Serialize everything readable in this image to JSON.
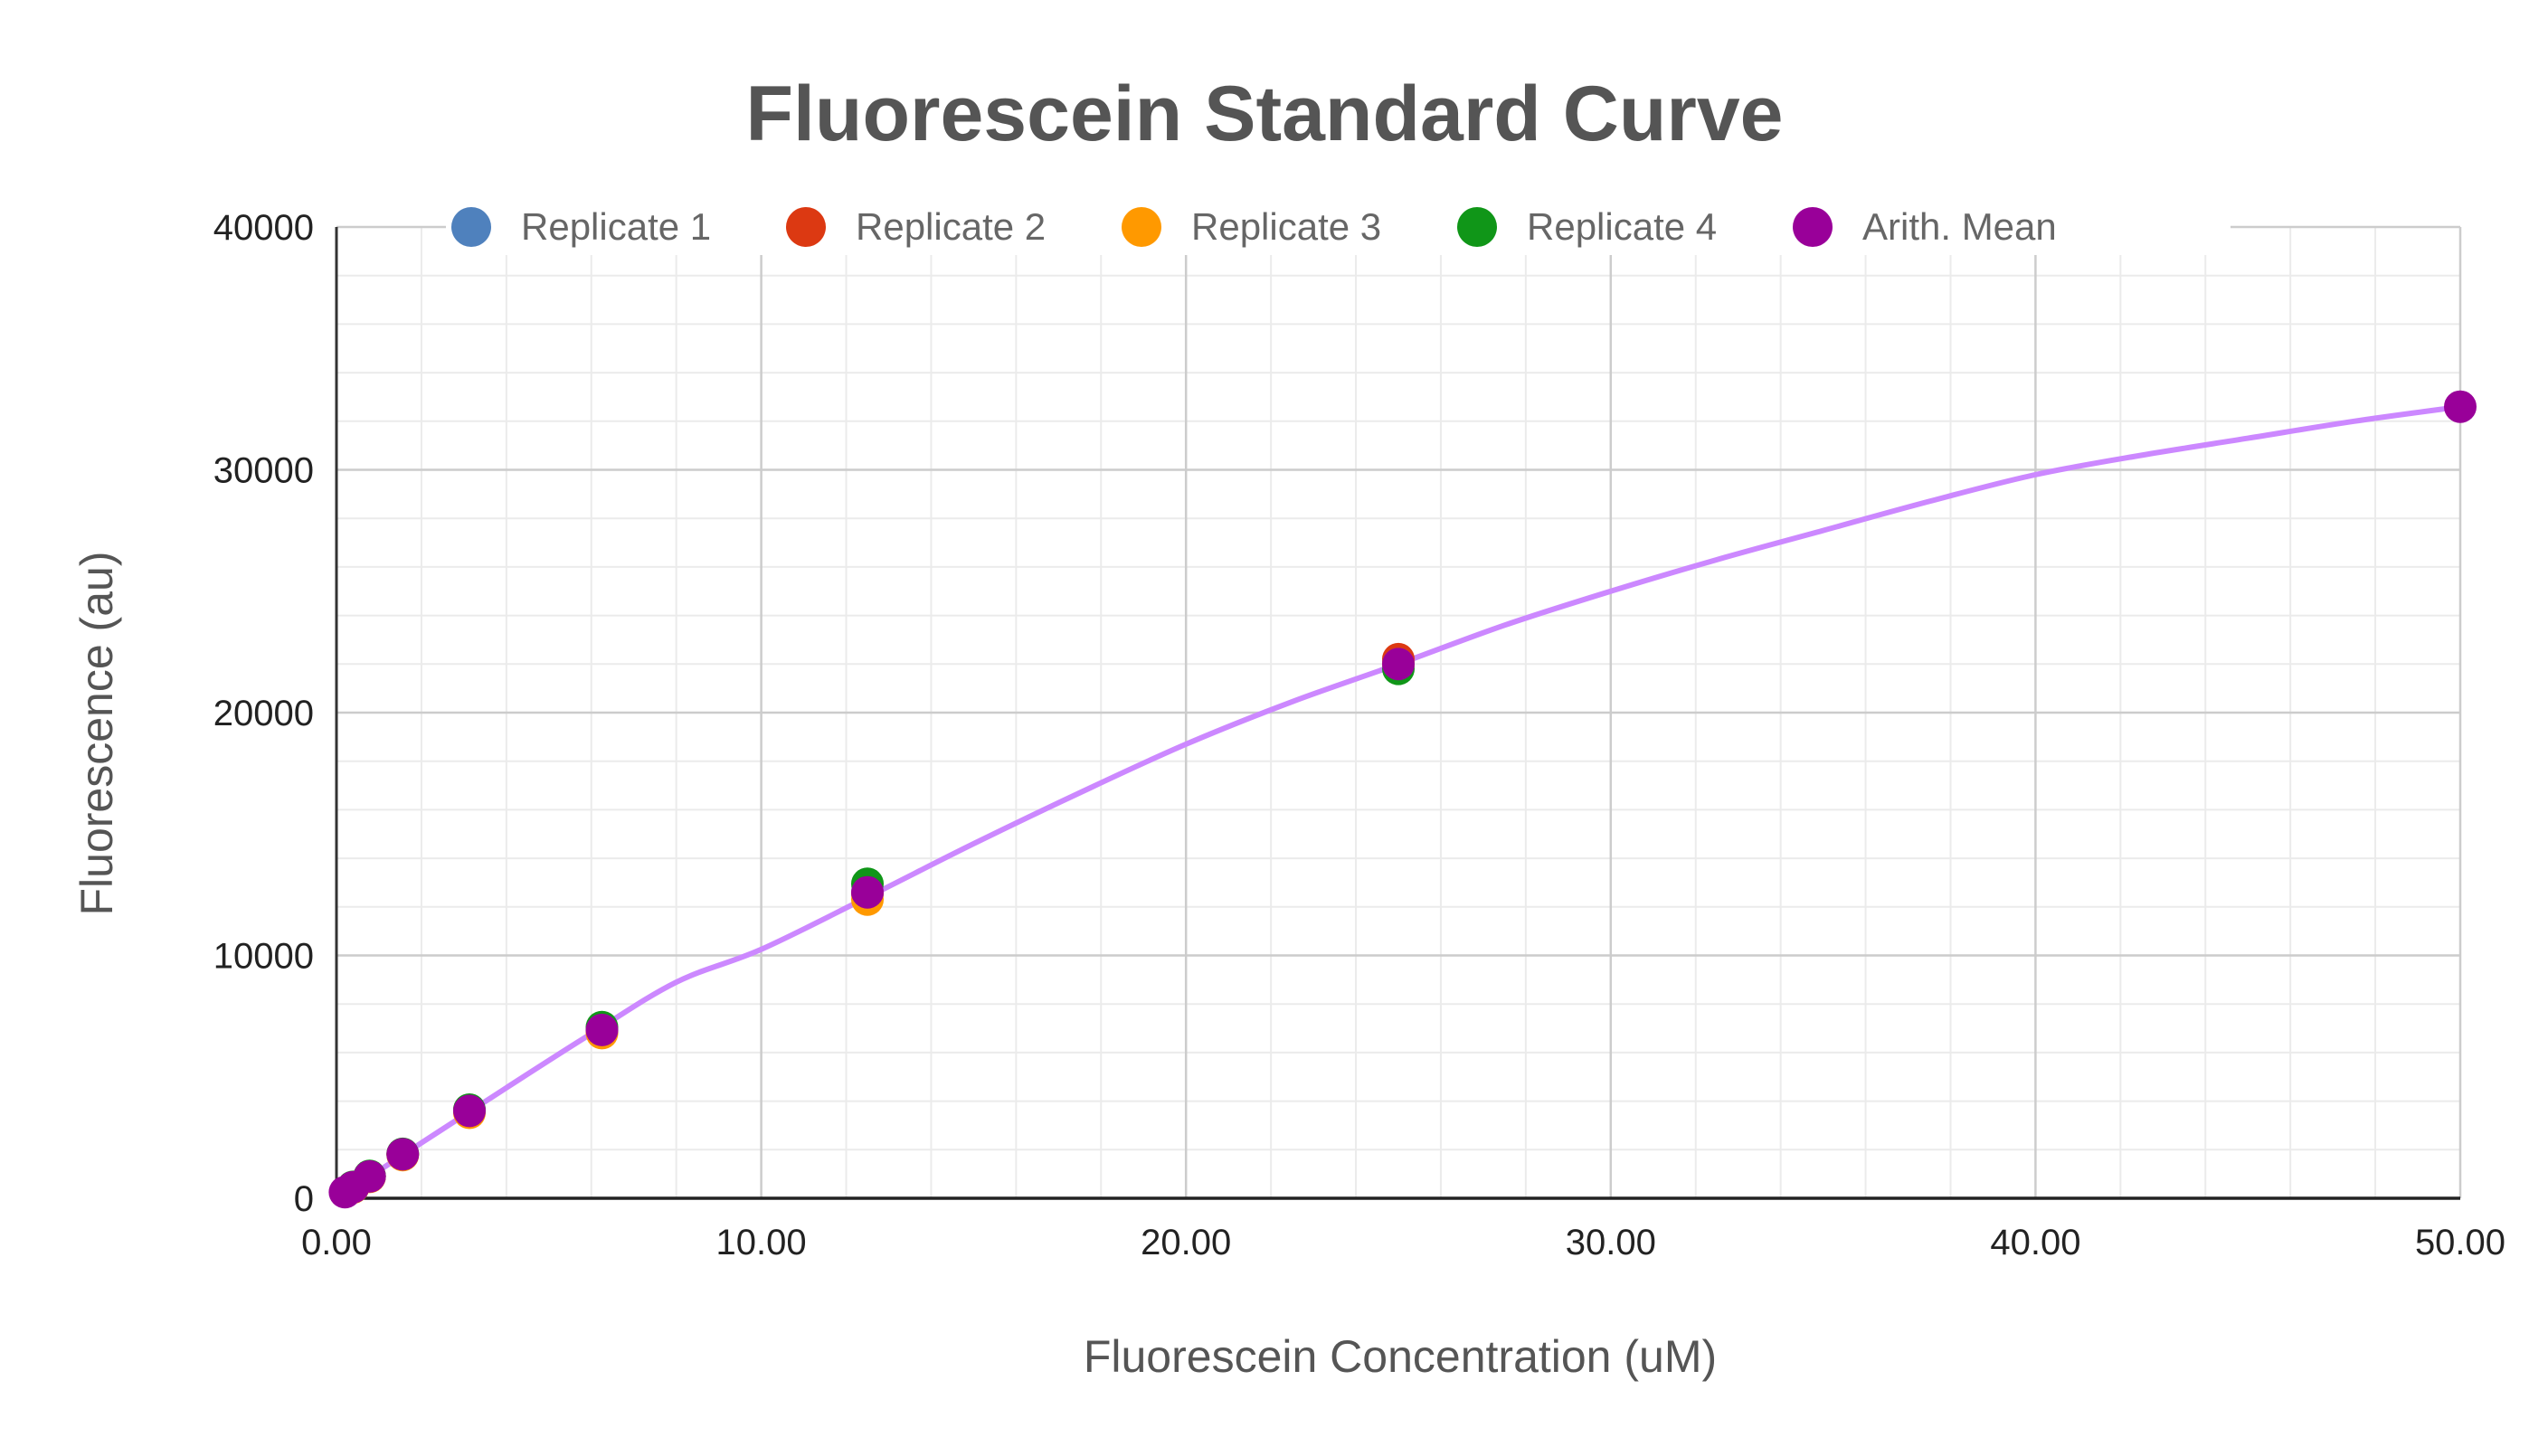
{
  "chart_data": {
    "type": "scatter",
    "title": "Fluorescein Standard Curve",
    "xlabel": "Fluorescein Concentration (uM)",
    "ylabel": "Fluorescence (au)",
    "xlim": [
      0,
      50
    ],
    "ylim": [
      0,
      40000
    ],
    "x_ticks": [
      "0.00",
      "10.00",
      "20.00",
      "30.00",
      "40.00",
      "50.00"
    ],
    "y_ticks": [
      "0",
      "10000",
      "20000",
      "30000",
      "40000"
    ],
    "grid": true,
    "legend_position": "top",
    "series": [
      {
        "name": "Replicate 1",
        "color": "#4f81bd",
        "x": [
          0.39,
          0.78,
          1.56,
          3.13,
          6.25,
          12.5,
          25
        ],
        "y": [
          450,
          900,
          1800,
          3600,
          6950,
          12600,
          22000
        ]
      },
      {
        "name": "Replicate 2",
        "color": "#dc3912",
        "x": [
          0.39,
          0.78,
          1.56,
          3.13,
          6.25,
          12.5,
          25
        ],
        "y": [
          460,
          910,
          1820,
          3620,
          6900,
          12550,
          22200
        ]
      },
      {
        "name": "Replicate 3",
        "color": "#ff9900",
        "x": [
          0.39,
          0.78,
          1.56,
          3.13,
          6.25,
          12.5,
          25
        ],
        "y": [
          440,
          880,
          1780,
          3520,
          6800,
          12300,
          22000
        ]
      },
      {
        "name": "Replicate 4",
        "color": "#109618",
        "x": [
          0.39,
          0.78,
          1.56,
          3.13,
          6.25,
          12.5,
          25
        ],
        "y": [
          470,
          920,
          1830,
          3650,
          7050,
          12950,
          21800
        ]
      },
      {
        "name": "Arith. Mean",
        "color": "#990099",
        "x": [
          0.2,
          0.39,
          0.78,
          1.56,
          3.13,
          6.25,
          12.5,
          25,
          50
        ],
        "y": [
          250,
          455,
          900,
          1810,
          3600,
          6930,
          12600,
          22000,
          32600
        ]
      }
    ],
    "trendline": {
      "series": "Arith. Mean",
      "color": "#cc88ff",
      "x": [
        0,
        2,
        4,
        6,
        8,
        10,
        12.5,
        15,
        17.5,
        20,
        22.5,
        25,
        27.5,
        30,
        32.5,
        35,
        37.5,
        40,
        42.5,
        45,
        47.5,
        50
      ],
      "y": [
        0,
        2280,
        4550,
        6780,
        8900,
        10250,
        12400,
        14600,
        16700,
        18700,
        20450,
        22000,
        23600,
        25000,
        26300,
        27500,
        28700,
        29800,
        30600,
        31300,
        32000,
        32600
      ]
    }
  }
}
